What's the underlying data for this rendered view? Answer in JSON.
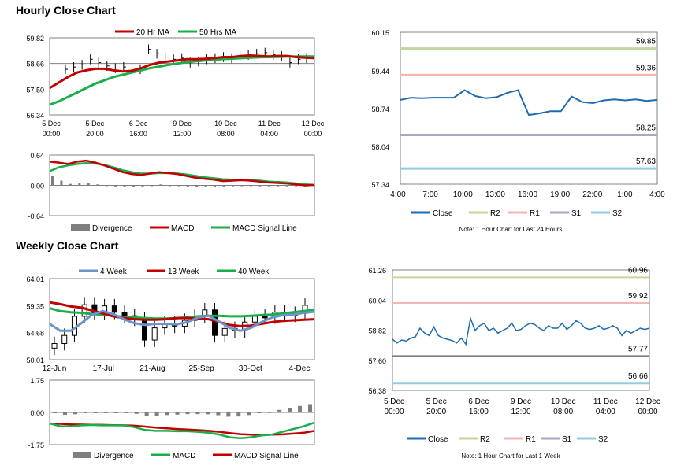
{
  "sections": {
    "hourly_title": "Hourly Close Chart",
    "weekly_title": "Weekly Close Chart"
  },
  "colors": {
    "red": "#c00000",
    "green": "#1aae4a",
    "blue": "#2e75b6",
    "blue_light": "#6d93cc",
    "gray_bar": "#7f7f7f",
    "r2": "#c3d69b",
    "r1": "#f4b6b2",
    "s1": "#b3a2c7",
    "s2": "#93cddd",
    "s1_weekly": "#7f7f7f",
    "s2_weekly": "#93cddd",
    "close": "#1f6cb0"
  },
  "chart_data": [
    {
      "id": "hourly_price",
      "type": "line",
      "title": "Hourly Close Chart",
      "legend": [
        "20 Hr MA",
        "50 Hrs MA"
      ],
      "yticks": [
        "59.82",
        "58.66",
        "57.50",
        "56.34"
      ],
      "ylim": [
        56.34,
        59.82
      ],
      "xticks": [
        [
          "5 Dec",
          "00:00"
        ],
        [
          "5 Dec",
          "20:00"
        ],
        [
          "6 Dec",
          "16:00"
        ],
        [
          "9 Dec",
          "12:00"
        ],
        [
          "10 Dec",
          "08:00"
        ],
        [
          "11 Dec",
          "04:00"
        ],
        [
          "12 Dec",
          "00:00"
        ]
      ],
      "series": [
        {
          "name": "20 Hr MA",
          "values": [
            57.55,
            57.8,
            58.05,
            58.25,
            58.35,
            58.42,
            58.42,
            58.35,
            58.3,
            58.33,
            58.45,
            58.6,
            58.7,
            58.75,
            58.8,
            58.85,
            58.85,
            58.87,
            58.9,
            58.95,
            58.95,
            59.0,
            59.02,
            59.0,
            58.98,
            59.0,
            59.0,
            58.95,
            58.92,
            58.9
          ]
        },
        {
          "name": "50 Hrs MA",
          "values": [
            56.8,
            56.95,
            57.15,
            57.35,
            57.55,
            57.75,
            57.9,
            58.05,
            58.15,
            58.25,
            58.35,
            58.45,
            58.52,
            58.6,
            58.66,
            58.72,
            58.76,
            58.8,
            58.83,
            58.86,
            58.88,
            58.9,
            58.92,
            58.94,
            58.95,
            58.96,
            58.97,
            58.97,
            58.98,
            58.98
          ]
        },
        {
          "name": "Price",
          "values": [
            58.4,
            58.5,
            58.6,
            58.85,
            58.7,
            58.55,
            58.45,
            58.5,
            58.3,
            58.4,
            59.3,
            59.1,
            58.95,
            58.85,
            58.9,
            58.7,
            58.75,
            58.85,
            58.9,
            58.95,
            58.9,
            59.0,
            59.05,
            59.1,
            59.15,
            59.05,
            59.0,
            58.7,
            58.85,
            58.9
          ]
        }
      ]
    },
    {
      "id": "hourly_macd",
      "type": "line",
      "legend": [
        "Divergence",
        "MACD",
        "MACD Signal Line"
      ],
      "yticks": [
        "0.64",
        "0.00",
        "-0.64"
      ],
      "ylim": [
        -0.64,
        0.64
      ],
      "series": [
        {
          "name": "MACD",
          "values": [
            0.5,
            0.48,
            0.45,
            0.5,
            0.52,
            0.48,
            0.42,
            0.35,
            0.28,
            0.24,
            0.22,
            0.25,
            0.28,
            0.26,
            0.24,
            0.2,
            0.16,
            0.14,
            0.12,
            0.09,
            0.1,
            0.11,
            0.1,
            0.08,
            0.06,
            0.05,
            0.04,
            0.02,
            0.0,
            0.01
          ]
        },
        {
          "name": "MACD Signal Line",
          "values": [
            0.3,
            0.38,
            0.42,
            0.45,
            0.47,
            0.46,
            0.43,
            0.38,
            0.32,
            0.28,
            0.25,
            0.25,
            0.26,
            0.26,
            0.25,
            0.23,
            0.2,
            0.17,
            0.15,
            0.13,
            0.12,
            0.12,
            0.11,
            0.1,
            0.08,
            0.07,
            0.06,
            0.04,
            0.02,
            0.01
          ]
        },
        {
          "name": "Divergence",
          "values": [
            0.2,
            0.1,
            0.03,
            0.05,
            0.05,
            0.02,
            -0.01,
            -0.03,
            -0.04,
            -0.04,
            -0.03,
            0.0,
            0.02,
            0.0,
            -0.01,
            -0.03,
            -0.04,
            -0.03,
            -0.03,
            -0.04,
            -0.02,
            -0.01,
            -0.01,
            -0.02,
            -0.02,
            -0.02,
            -0.02,
            -0.02,
            -0.02,
            0.0
          ]
        }
      ]
    },
    {
      "id": "hourly_levels",
      "type": "line",
      "xticks": [
        "4:00",
        "7:00",
        "10:00",
        "13:00",
        "16:00",
        "19:00",
        "22:00",
        "1:00",
        "4:00"
      ],
      "yticks": [
        "60.15",
        "59.44",
        "58.74",
        "58.04",
        "57.34"
      ],
      "ylim": [
        57.34,
        60.15
      ],
      "levels": [
        {
          "name": "R2",
          "value": 59.85,
          "label": "59.85"
        },
        {
          "name": "R1",
          "value": 59.36,
          "label": "59.36"
        },
        {
          "name": "S1",
          "value": 58.25,
          "label": "58.25"
        },
        {
          "name": "S2",
          "value": 57.63,
          "label": "57.63"
        }
      ],
      "close": [
        58.9,
        58.94,
        58.93,
        58.94,
        58.94,
        58.94,
        59.08,
        58.97,
        58.93,
        58.95,
        59.03,
        59.08,
        58.62,
        58.65,
        58.69,
        58.69,
        58.96,
        58.86,
        58.84,
        58.89,
        58.91,
        58.89,
        58.91,
        58.88,
        58.9
      ],
      "legend": [
        "Close",
        "R2",
        "R1",
        "S1",
        "S2"
      ],
      "note": "Note: 1 Hour Chart for Last 24 Hours"
    },
    {
      "id": "weekly_price",
      "type": "line",
      "title": "Weekly Close Chart",
      "legend": [
        "4 Week",
        "13 Week",
        "40 Week"
      ],
      "yticks": [
        "64.01",
        "59.35",
        "54.68",
        "50.01"
      ],
      "ylim": [
        50.01,
        64.01
      ],
      "xticks": [
        "12-Jun",
        "17-Jul",
        "21-Aug",
        "25-Sep",
        "30-Oct",
        "4-Dec"
      ],
      "series": [
        {
          "name": "4 Week",
          "values": [
            56.2,
            55.0,
            55.0,
            56.3,
            57.8,
            58.4,
            57.9,
            57.0,
            56.3,
            56.0,
            56.2,
            56.2,
            56.1,
            56.5,
            57.3,
            57.6,
            56.6,
            55.5,
            55.0,
            55.5,
            56.5,
            57.3,
            57.7,
            57.8,
            58.1,
            58.3
          ]
        },
        {
          "name": "13 Week",
          "values": [
            59.9,
            59.6,
            59.2,
            59.0,
            58.5,
            58.0,
            57.5,
            57.2,
            57.0,
            56.9,
            56.9,
            57.0,
            57.2,
            57.2,
            57.1,
            57.0,
            56.5,
            56.0,
            55.8,
            55.9,
            56.2,
            56.5,
            56.7,
            56.8,
            56.9,
            57.0
          ]
        },
        {
          "name": "40 Week",
          "values": [
            58.9,
            58.4,
            58.2,
            58.1,
            57.9,
            57.8,
            57.6,
            57.4,
            57.3,
            57.2,
            57.1,
            57.1,
            57.2,
            57.3,
            57.5,
            57.6,
            57.6,
            57.5,
            57.5,
            57.6,
            57.7,
            57.8,
            58.0,
            58.2,
            58.4,
            58.7
          ]
        },
        {
          "name": "Close",
          "values": [
            52.8,
            54.2,
            57.5,
            59.5,
            58.0,
            59.3,
            58.2,
            57.6,
            57.0,
            53.4,
            55.5,
            56.3,
            55.8,
            56.8,
            57.5,
            58.6,
            54.2,
            55.4,
            55.0,
            56.5,
            57.5,
            57.4,
            58.2,
            57.7,
            58.0,
            59.4
          ]
        }
      ]
    },
    {
      "id": "weekly_macd",
      "type": "line",
      "legend": [
        "Divergence",
        "MACD",
        "MACD Signal Line"
      ],
      "yticks": [
        "1.75",
        "0.00",
        "-1.75"
      ],
      "ylim": [
        -1.75,
        1.75
      ],
      "series": [
        {
          "name": "MACD",
          "values": [
            -0.6,
            -0.75,
            -0.75,
            -0.7,
            -0.68,
            -0.7,
            -0.7,
            -0.7,
            -0.8,
            -0.95,
            -1.0,
            -1.0,
            -1.02,
            -1.02,
            -1.05,
            -1.1,
            -1.2,
            -1.35,
            -1.4,
            -1.35,
            -1.25,
            -1.2,
            -1.05,
            -0.9,
            -0.75,
            -0.55
          ]
        },
        {
          "name": "MACD Signal Line",
          "values": [
            -0.6,
            -0.62,
            -0.65,
            -0.66,
            -0.67,
            -0.68,
            -0.69,
            -0.7,
            -0.72,
            -0.77,
            -0.82,
            -0.86,
            -0.9,
            -0.93,
            -0.96,
            -1.0,
            -1.05,
            -1.12,
            -1.18,
            -1.21,
            -1.22,
            -1.21,
            -1.19,
            -1.15,
            -1.1,
            -1.0
          ]
        },
        {
          "name": "Divergence",
          "values": [
            0.0,
            -0.13,
            -0.1,
            -0.04,
            -0.01,
            -0.02,
            -0.01,
            0.0,
            -0.08,
            -0.18,
            -0.18,
            -0.14,
            -0.12,
            -0.09,
            -0.09,
            -0.1,
            -0.15,
            -0.23,
            -0.22,
            -0.14,
            -0.03,
            0.01,
            0.14,
            0.25,
            0.35,
            0.45
          ]
        }
      ]
    },
    {
      "id": "weekly_levels",
      "type": "line",
      "xticks": [
        [
          "5 Dec",
          "00:00"
        ],
        [
          "5 Dec",
          "20:00"
        ],
        [
          "6 Dec",
          "16:00"
        ],
        [
          "9 Dec",
          "12:00"
        ],
        [
          "10 Dec",
          "08:00"
        ],
        [
          "11 Dec",
          "04:00"
        ],
        [
          "12 Dec",
          "00:00"
        ]
      ],
      "yticks": [
        "61.26",
        "60.04",
        "58.82",
        "57.60",
        "56.38"
      ],
      "ylim": [
        56.38,
        61.26
      ],
      "levels": [
        {
          "name": "R2",
          "value": 60.96,
          "label": "60.96"
        },
        {
          "name": "R1",
          "value": 59.92,
          "label": "59.92"
        },
        {
          "name": "S1",
          "value": 57.77,
          "label": "57.77"
        },
        {
          "name": "S2",
          "value": 56.66,
          "label": "56.66"
        }
      ],
      "close": [
        58.45,
        58.3,
        58.42,
        58.38,
        58.5,
        58.55,
        58.9,
        58.7,
        58.6,
        58.95,
        58.6,
        58.5,
        58.45,
        58.4,
        58.3,
        58.5,
        58.25,
        59.3,
        58.8,
        59.0,
        59.1,
        58.8,
        58.9,
        58.7,
        58.8,
        58.9,
        59.1,
        58.8,
        58.85,
        59.0,
        59.1,
        59.05,
        58.9,
        58.8,
        59.0,
        58.9,
        58.9,
        59.1,
        58.85,
        59.0,
        59.2,
        59.1,
        58.9,
        58.85,
        58.9,
        59.0,
        58.85,
        58.9,
        59.0,
        58.9,
        58.6,
        58.8,
        58.7,
        58.8,
        58.9,
        58.85,
        58.9
      ],
      "legend": [
        "Close",
        "R2",
        "R1",
        "S1",
        "S2"
      ],
      "note": "Note: 1 Hour Chart for Last 1 Week"
    }
  ]
}
